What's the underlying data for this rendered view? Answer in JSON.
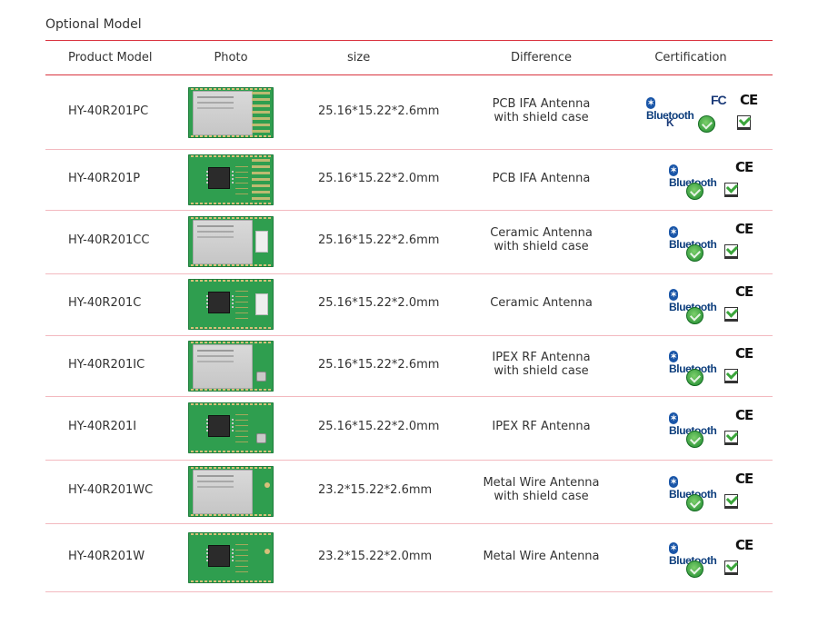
{
  "section_title": "Optional Model",
  "headers": {
    "model": "Product Model",
    "photo": "Photo",
    "size": "size",
    "difference": "Difference",
    "certification": "Certification"
  },
  "rows": [
    {
      "model": "HY-40R201PC",
      "size": "25.16*15.22*2.6mm",
      "diff1": "PCB IFA Antenna",
      "diff2": "with shield case",
      "photo": "module-shield-pcb-antenna",
      "certs": [
        "Bluetooth",
        "FC",
        "CE",
        "KC",
        "RoHS",
        "REACH"
      ]
    },
    {
      "model": "HY-40R201P",
      "size": "25.16*15.22*2.0mm",
      "diff1": "PCB IFA Antenna",
      "diff2": "",
      "photo": "module-bare-pcb-antenna",
      "certs": [
        "Bluetooth",
        "CE",
        "RoHS",
        "REACH"
      ]
    },
    {
      "model": "HY-40R201CC",
      "size": "25.16*15.22*2.6mm",
      "diff1": "Ceramic Antenna",
      "diff2": "with shield case",
      "photo": "module-shield-ceramic",
      "certs": [
        "Bluetooth",
        "CE",
        "RoHS",
        "REACH"
      ]
    },
    {
      "model": "HY-40R201C",
      "size": "25.16*15.22*2.0mm",
      "diff1": "Ceramic Antenna",
      "diff2": "",
      "photo": "module-bare-ceramic",
      "certs": [
        "Bluetooth",
        "CE",
        "RoHS",
        "REACH"
      ]
    },
    {
      "model": "HY-40R201IC",
      "size": "25.16*15.22*2.6mm",
      "diff1": "IPEX RF Antenna",
      "diff2": "with shield case",
      "photo": "module-shield-ipex",
      "certs": [
        "Bluetooth",
        "CE",
        "RoHS",
        "REACH"
      ]
    },
    {
      "model": "HY-40R201I",
      "size": "25.16*15.22*2.0mm",
      "diff1": "IPEX RF Antenna",
      "diff2": "",
      "photo": "module-bare-ipex",
      "certs": [
        "Bluetooth",
        "CE",
        "RoHS",
        "REACH"
      ]
    },
    {
      "model": "HY-40R201WC",
      "size": "23.2*15.22*2.6mm",
      "diff1": "Metal Wire Antenna",
      "diff2": "with shield case",
      "photo": "module-shield-wire",
      "certs": [
        "Bluetooth",
        "CE",
        "RoHS",
        "REACH"
      ]
    },
    {
      "model": "HY-40R201W",
      "size": "23.2*15.22*2.0mm",
      "diff1": "Metal Wire Antenna",
      "diff2": "",
      "photo": "module-bare-wire",
      "certs": [
        "Bluetooth",
        "CE",
        "RoHS",
        "REACH"
      ]
    }
  ],
  "logo_text": {
    "bluetooth": "Bluetooth",
    "fc": "FC",
    "ce": "CE",
    "kc": "K"
  },
  "colors": {
    "header_line": "#d9333f",
    "row_line": "#f3b9bf",
    "pcb_green": "#2f9e4f",
    "bluetooth_blue": "#0c3d7c"
  }
}
